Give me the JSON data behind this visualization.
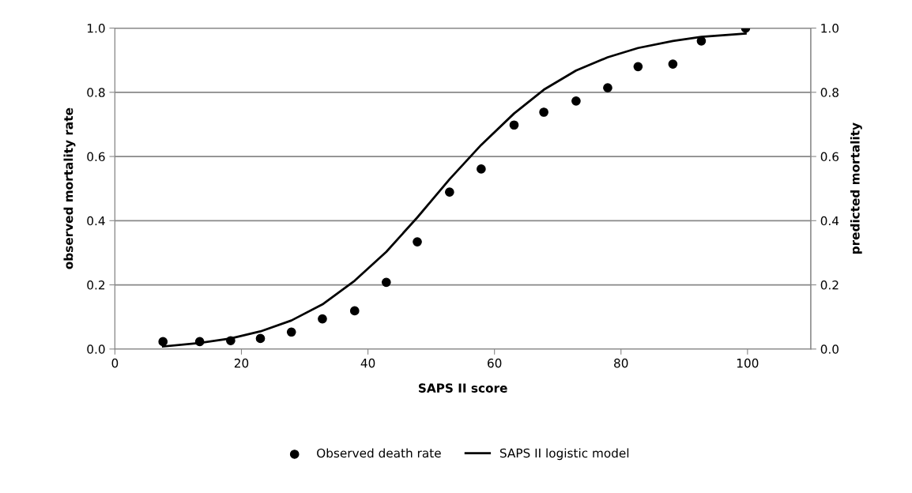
{
  "chart_data": {
    "type": "scatter",
    "xlabel": "SAPS II score",
    "ylabel": "observed mortality rate",
    "y2label": "predicted mortality",
    "xlim": [
      0,
      110
    ],
    "xticks": [
      0,
      20,
      40,
      60,
      80,
      100
    ],
    "ylim": [
      0,
      1
    ],
    "yticks": [
      {
        "value": 0,
        "label": "0.0"
      },
      {
        "value": 0.2,
        "label": "0.2"
      },
      {
        "value": 0.4,
        "label": "0.4"
      },
      {
        "value": 0.6,
        "label": "0.6"
      },
      {
        "value": 0.8,
        "label": "0.8"
      },
      {
        "value": 1,
        "label": "1.0"
      }
    ],
    "y2lim": [
      0,
      1
    ],
    "y2ticks": [
      {
        "value": 0,
        "label": "0.0"
      },
      {
        "value": 0.2,
        "label": "0.2"
      },
      {
        "value": 0.4,
        "label": "0.4"
      },
      {
        "value": 0.6,
        "label": "0.6"
      },
      {
        "value": 0.8,
        "label": "0.8"
      },
      {
        "value": 1,
        "label": "1.0"
      }
    ],
    "grid": "y",
    "legend": "bottom",
    "series": [
      {
        "name": "Observed death rate",
        "color": "#000000",
        "marker": "circle",
        "x": [
          7.6,
          13.4,
          18.3,
          23.0,
          27.9,
          32.8,
          37.9,
          42.9,
          47.8,
          52.9,
          57.9,
          63.1,
          67.8,
          72.9,
          77.9,
          82.7,
          88.2,
          92.7,
          99.7
        ],
        "values": [
          0.023,
          0.023,
          0.026,
          0.033,
          0.053,
          0.094,
          0.119,
          0.208,
          0.334,
          0.489,
          0.561,
          0.698,
          0.738,
          0.773,
          0.814,
          0.88,
          0.888,
          0.96,
          1.0
        ]
      },
      {
        "name": "SAPS II logistic model",
        "type": "line",
        "color": "#000000",
        "line_style": "solid",
        "x": [
          7.6,
          13.4,
          18.3,
          23.0,
          27.9,
          32.8,
          37.9,
          42.9,
          47.8,
          52.9,
          57.9,
          63.1,
          67.8,
          72.9,
          77.9,
          82.7,
          88.2,
          92.7,
          99.7
        ],
        "values": [
          0.008,
          0.019,
          0.033,
          0.055,
          0.089,
          0.139,
          0.213,
          0.303,
          0.41,
          0.529,
          0.636,
          0.734,
          0.808,
          0.868,
          0.909,
          0.938,
          0.96,
          0.973,
          0.983
        ]
      }
    ]
  }
}
